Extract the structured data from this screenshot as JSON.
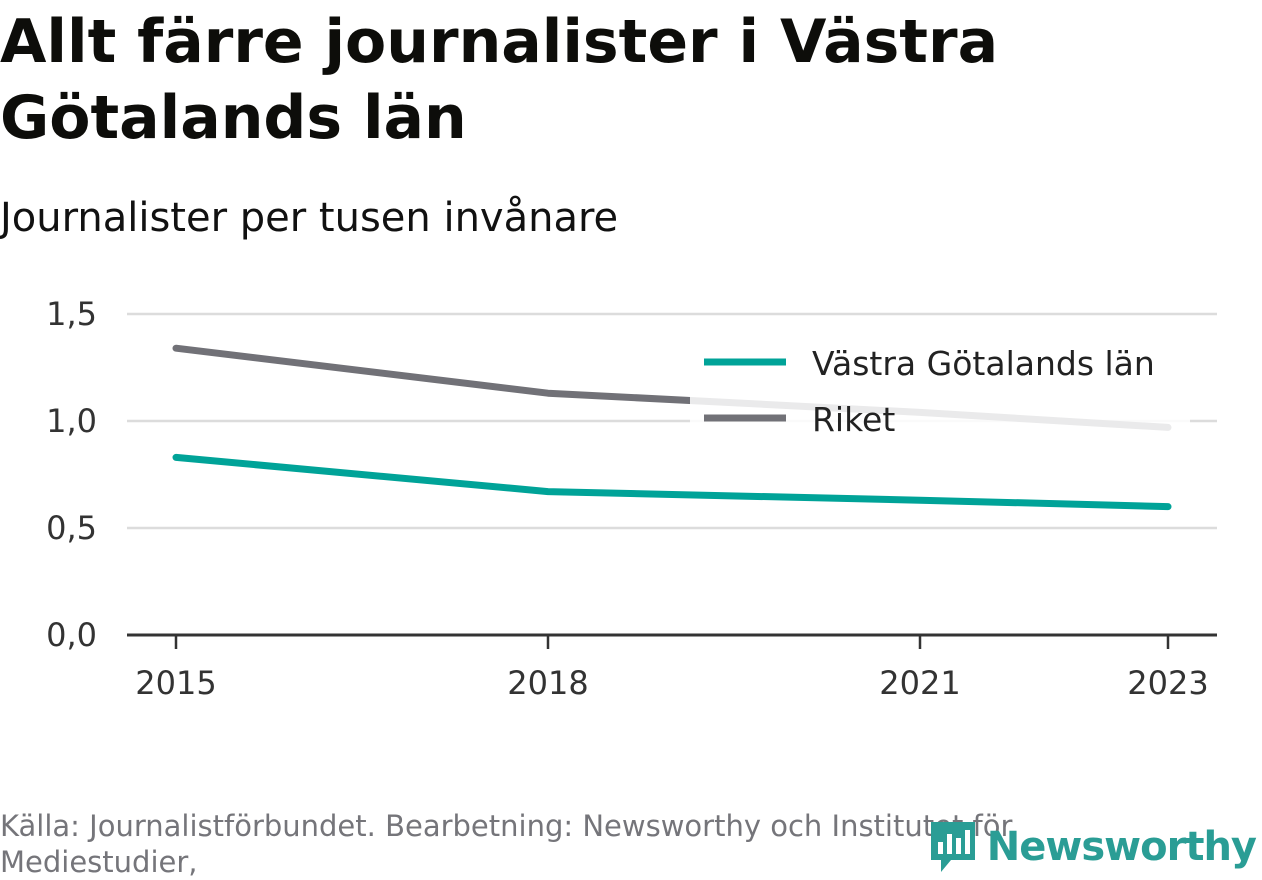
{
  "title": "Allt färre journalister i Västra Götalands län",
  "subtitle": "Journalister per tusen invånare",
  "source": "Källa: Journalistförbundet. Bearbetning: Newsworthy och Institutet för Mediestudier,",
  "logo": {
    "text": "Newsworthy",
    "icon": "bar-chart-speech-bubble-icon",
    "color": "#2a9d95"
  },
  "chart_data": {
    "type": "line",
    "title": "Allt färre journalister i Västra Götalands län",
    "subtitle": "Journalister per tusen invånare",
    "x": [
      2015,
      2018,
      2021,
      2023
    ],
    "x_tick_labels": [
      "2015",
      "2018",
      "2021",
      "2023"
    ],
    "y_tick_labels": [
      "0,0",
      "0,5",
      "1,0",
      "1,5"
    ],
    "y_ticks": [
      0,
      0.5,
      1.0,
      1.5
    ],
    "ylim": [
      0,
      1.5
    ],
    "xlim": [
      2014.6,
      2023.4
    ],
    "grid": true,
    "legend_position": "top-right",
    "series": [
      {
        "name": "Västra Götalands län",
        "color": "#00a398",
        "points": [
          [
            2015,
            0.83
          ],
          [
            2018,
            0.67
          ],
          [
            2021,
            0.63
          ],
          [
            2023,
            0.6
          ]
        ]
      },
      {
        "name": "Riket",
        "color": "#717177",
        "points": [
          [
            2015,
            1.34
          ],
          [
            2018,
            1.13
          ],
          [
            2021,
            1.04
          ],
          [
            2023,
            0.97
          ]
        ]
      }
    ]
  }
}
